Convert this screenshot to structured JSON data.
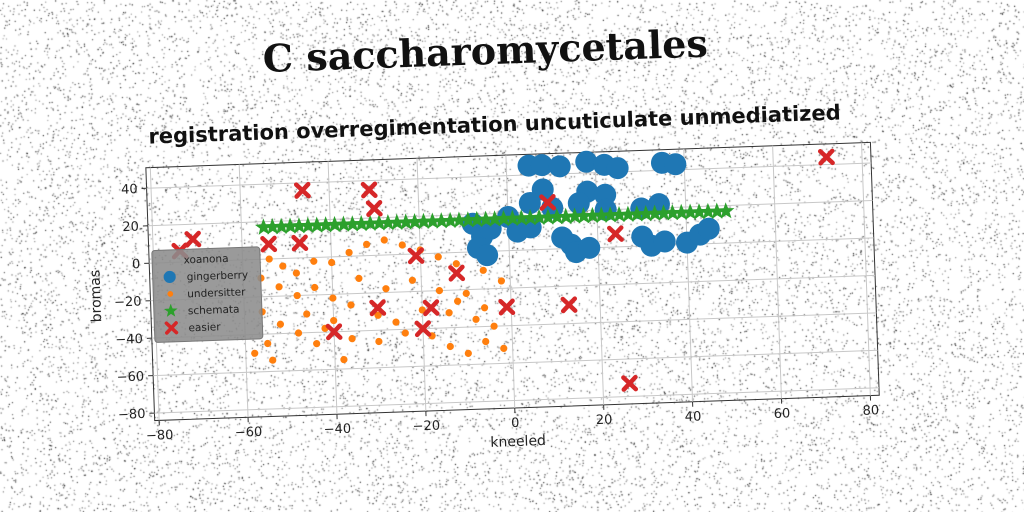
{
  "suptitle": "C saccharomycetales",
  "chart_data": {
    "type": "scatter",
    "title": "registration overregimentation uncuticulate unmediatized",
    "xlabel": "kneeled",
    "ylabel": "bromas",
    "xlim": [
      -81,
      82
    ],
    "ylim": [
      -84,
      51
    ],
    "xticks": [
      -80,
      -60,
      -40,
      -20,
      0,
      20,
      40,
      60,
      80
    ],
    "yticks": [
      -80,
      -60,
      -40,
      -20,
      0,
      20,
      40
    ],
    "grid": true,
    "legend": {
      "title": "xoanona",
      "placement": "center-left"
    },
    "series": [
      {
        "name": "gingerberry",
        "marker": "circle-large",
        "color": "#1f77b4",
        "points": [
          [
            5,
            45
          ],
          [
            8,
            45
          ],
          [
            12,
            44
          ],
          [
            18,
            46
          ],
          [
            22,
            44
          ],
          [
            25,
            42
          ],
          [
            35,
            44
          ],
          [
            38,
            43
          ],
          [
            8,
            32
          ],
          [
            18,
            30
          ],
          [
            22,
            28
          ],
          [
            5,
            25
          ],
          [
            10,
            22
          ],
          [
            16,
            24
          ],
          [
            22,
            20
          ],
          [
            30,
            20
          ],
          [
            34,
            22
          ],
          [
            -8,
            15
          ],
          [
            -6,
            8
          ],
          [
            -7,
            2
          ],
          [
            -5,
            -2
          ],
          [
            2,
            10
          ],
          [
            5,
            12
          ],
          [
            12,
            6
          ],
          [
            14,
            2
          ],
          [
            15,
            -2
          ],
          [
            18,
            0
          ],
          [
            30,
            5
          ],
          [
            32,
            0
          ],
          [
            35,
            2
          ],
          [
            40,
            1
          ],
          [
            43,
            5
          ],
          [
            45,
            8
          ],
          [
            -4,
            12
          ],
          [
            0,
            18
          ]
        ]
      },
      {
        "name": "undersitter",
        "marker": "circle-small",
        "color": "#ff7f0e",
        "points": [
          [
            -54,
            0
          ],
          [
            -51,
            -4
          ],
          [
            -48,
            -8
          ],
          [
            -44,
            -2
          ],
          [
            -40,
            -3
          ],
          [
            -36,
            2
          ],
          [
            -32,
            6
          ],
          [
            -28,
            8
          ],
          [
            -24,
            5
          ],
          [
            -20,
            2
          ],
          [
            -16,
            -2
          ],
          [
            -12,
            -6
          ],
          [
            -6,
            -10
          ],
          [
            -2,
            -16
          ],
          [
            -56,
            -10
          ],
          [
            -52,
            -15
          ],
          [
            -48,
            -20
          ],
          [
            -44,
            -16
          ],
          [
            -40,
            -22
          ],
          [
            -36,
            -26
          ],
          [
            -30,
            -32
          ],
          [
            -26,
            -36
          ],
          [
            -20,
            -30
          ],
          [
            -14,
            -32
          ],
          [
            -10,
            -22
          ],
          [
            -6,
            -30
          ],
          [
            -56,
            -28
          ],
          [
            -52,
            -35
          ],
          [
            -48,
            -40
          ],
          [
            -44,
            -46
          ],
          [
            -40,
            -34
          ],
          [
            -36,
            -44
          ],
          [
            -30,
            -46
          ],
          [
            -24,
            -42
          ],
          [
            -18,
            -44
          ],
          [
            -14,
            -50
          ],
          [
            -10,
            -54
          ],
          [
            -6,
            -48
          ],
          [
            -2,
            -52
          ],
          [
            -55,
            -45
          ],
          [
            -58,
            -50
          ],
          [
            -54,
            -54
          ],
          [
            -34,
            -12
          ],
          [
            -28,
            -18
          ],
          [
            -22,
            -14
          ],
          [
            -16,
            -20
          ],
          [
            -12,
            -26
          ],
          [
            -8,
            -36
          ],
          [
            -4,
            -40
          ],
          [
            -46,
            -30
          ],
          [
            -42,
            -38
          ],
          [
            -38,
            -55
          ]
        ]
      },
      {
        "name": "schemata",
        "marker": "star",
        "color": "#2ca02c",
        "points": [
          [
            -55,
            17
          ],
          [
            -53,
            17
          ],
          [
            -51,
            17
          ],
          [
            -49,
            17
          ],
          [
            -47,
            17
          ],
          [
            -45,
            17
          ],
          [
            -43,
            17
          ],
          [
            -41,
            17
          ],
          [
            -39,
            17
          ],
          [
            -37,
            17
          ],
          [
            -35,
            17
          ],
          [
            -33,
            17
          ],
          [
            -31,
            17
          ],
          [
            -29,
            17
          ],
          [
            -27,
            17
          ],
          [
            -25,
            17
          ],
          [
            -23,
            17
          ],
          [
            -21,
            17
          ],
          [
            -19,
            17
          ],
          [
            -17,
            17
          ],
          [
            -15,
            17
          ],
          [
            -13,
            17
          ],
          [
            -11,
            17
          ],
          [
            -9,
            17
          ],
          [
            -7,
            17
          ],
          [
            -5,
            17
          ],
          [
            -3,
            17
          ],
          [
            -1,
            17
          ],
          [
            1,
            17
          ],
          [
            3,
            17
          ],
          [
            5,
            17
          ],
          [
            7,
            17
          ],
          [
            9,
            17
          ],
          [
            11,
            17
          ],
          [
            13,
            17
          ],
          [
            15,
            17
          ],
          [
            17,
            17
          ],
          [
            19,
            17
          ],
          [
            21,
            17
          ],
          [
            23,
            17
          ],
          [
            25,
            17
          ],
          [
            27,
            17
          ],
          [
            29,
            17
          ],
          [
            31,
            17
          ],
          [
            33,
            17
          ],
          [
            35,
            17
          ],
          [
            37,
            17
          ],
          [
            39,
            17
          ],
          [
            41,
            17
          ],
          [
            43,
            17
          ],
          [
            45,
            17
          ],
          [
            47,
            17
          ],
          [
            49,
            17
          ]
        ]
      },
      {
        "name": "easier",
        "marker": "x",
        "color": "#d62728",
        "points": [
          [
            72,
            44
          ],
          [
            -46,
            36
          ],
          [
            -31,
            35
          ],
          [
            -30,
            25
          ],
          [
            -71,
            12
          ],
          [
            -74,
            6
          ],
          [
            -54,
            8
          ],
          [
            -47,
            8
          ],
          [
            9,
            25
          ],
          [
            24,
            7
          ],
          [
            -21,
            -1
          ],
          [
            -12,
            -11
          ],
          [
            -30,
            -28
          ],
          [
            -18,
            -29
          ],
          [
            -20,
            -40
          ],
          [
            -40,
            -40
          ],
          [
            -1,
            -30
          ],
          [
            13,
            -30
          ],
          [
            26,
            -73
          ]
        ]
      }
    ]
  }
}
